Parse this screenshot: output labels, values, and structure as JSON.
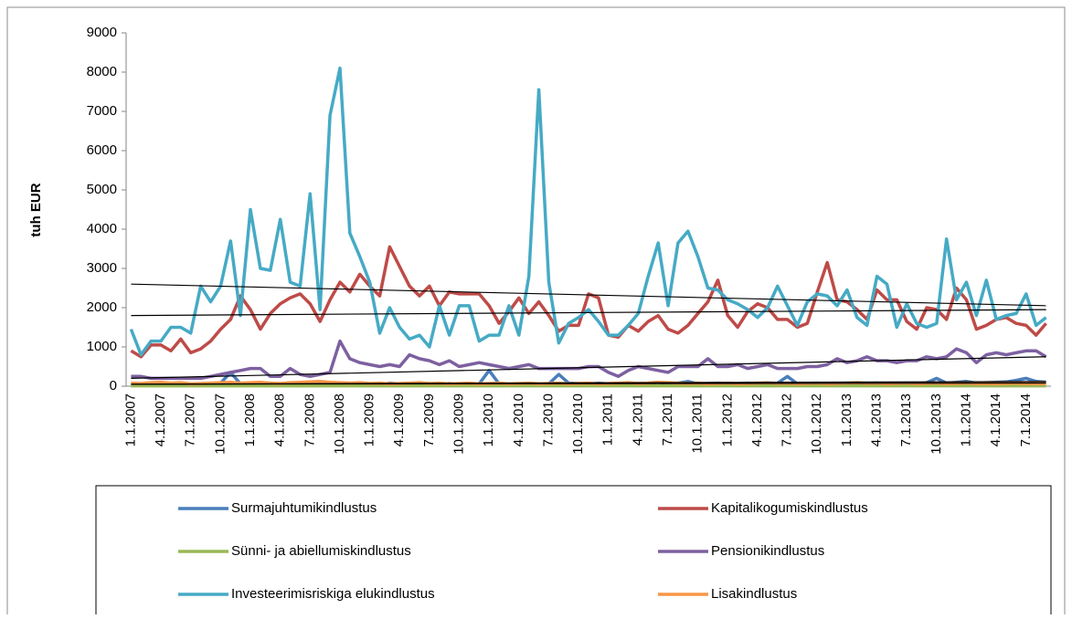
{
  "chart_data": {
    "type": "line",
    "y_label": "tuh EUR",
    "categories": [
      "1.1.2007",
      null,
      null,
      "4.1.2007",
      null,
      null,
      "7.1.2007",
      null,
      null,
      "10.1.2007",
      null,
      null,
      "1.1.2008",
      null,
      null,
      "4.1.2008",
      null,
      null,
      "7.1.2008",
      null,
      null,
      "10.1.2008",
      null,
      null,
      "1.1.2009",
      null,
      null,
      "4.1.2009",
      null,
      null,
      "7.1.2009",
      null,
      null,
      "10.1.2009",
      null,
      null,
      "1.1.2010",
      null,
      null,
      "4.1.2010",
      null,
      null,
      "7.1.2010",
      null,
      null,
      "10.1.2010",
      null,
      null,
      "1.1.2011",
      null,
      null,
      "4.1.2011",
      null,
      null,
      "7.1.2011",
      null,
      null,
      "10.1.2011",
      null,
      null,
      "1.1.2012",
      null,
      null,
      "4.1.2012",
      null,
      null,
      "7.1.2012",
      null,
      null,
      "10.1.2012",
      null,
      null,
      "1.1.2013",
      null,
      null,
      "4.1.2013",
      null,
      null,
      "7.1.2013",
      null,
      null,
      "10.1.2013",
      null,
      null,
      "1.1.2014",
      null,
      null,
      "4.1.2014",
      null,
      null,
      "7.1.2014",
      null,
      null
    ],
    "ylim": [
      0,
      9000
    ],
    "yticks": [
      0,
      1000,
      2000,
      3000,
      4000,
      5000,
      6000,
      7000,
      8000,
      9000
    ],
    "grid": false,
    "legend": "bottom",
    "series": [
      {
        "name": "Surmajuhtumikindlustus",
        "color": "#4a7ebb",
        "values": [
          50,
          40,
          50,
          60,
          50,
          40,
          30,
          50,
          60,
          80,
          350,
          60,
          50,
          40,
          50,
          60,
          50,
          40,
          60,
          50,
          60,
          70,
          50,
          40,
          50,
          30,
          80,
          60,
          40,
          50,
          60,
          50,
          70,
          50,
          40,
          60,
          400,
          60,
          50,
          60,
          70,
          50,
          60,
          300,
          80,
          70,
          60,
          80,
          60,
          50,
          60,
          70,
          80,
          100,
          60,
          80,
          120,
          60,
          70,
          80,
          70,
          60,
          80,
          60,
          70,
          80,
          250,
          60,
          70,
          80,
          60,
          70,
          80,
          60,
          70,
          80,
          60,
          70,
          80,
          60,
          90,
          200,
          80,
          100,
          120,
          80,
          90,
          100,
          110,
          150,
          200,
          120,
          100
        ],
        "trendline": [
          50,
          120
        ]
      },
      {
        "name": "Kapitalikogumiskindlustus",
        "color": "#be4b48",
        "values": [
          900,
          750,
          1050,
          1050,
          900,
          1200,
          850,
          950,
          1150,
          1450,
          1700,
          2300,
          1950,
          1450,
          1850,
          2100,
          2250,
          2350,
          2100,
          1650,
          2200,
          2650,
          2400,
          2850,
          2550,
          2300,
          3550,
          3050,
          2550,
          2300,
          2550,
          2050,
          2400,
          2350,
          2350,
          2350,
          2050,
          1600,
          1900,
          2250,
          1850,
          2150,
          1800,
          1400,
          1550,
          1550,
          2350,
          2250,
          1300,
          1250,
          1550,
          1400,
          1650,
          1800,
          1450,
          1350,
          1550,
          1850,
          2150,
          2700,
          1800,
          1500,
          1900,
          2100,
          2000,
          1700,
          1700,
          1500,
          1600,
          2400,
          3150,
          2200,
          2150,
          1950,
          1700,
          2450,
          2200,
          2200,
          1650,
          1450,
          2000,
          1950,
          1700,
          2500,
          2200,
          1450,
          1550,
          1700,
          1750,
          1600,
          1550,
          1300,
          1600
        ],
        "trendline": [
          1800,
          1950
        ]
      },
      {
        "name": "Sünni- ja abiellumiskindlustus",
        "color": "#98b954",
        "values": [
          10,
          10,
          10,
          10,
          10,
          10,
          10,
          10,
          10,
          10,
          10,
          10,
          10,
          10,
          10,
          10,
          10,
          10,
          10,
          10,
          10,
          10,
          10,
          10,
          10,
          10,
          10,
          10,
          10,
          10,
          10,
          10,
          10,
          10,
          10,
          10,
          10,
          10,
          10,
          10,
          10,
          10,
          10,
          10,
          10,
          10,
          10,
          10,
          10,
          10,
          10,
          10,
          10,
          10,
          10,
          10,
          10,
          10,
          10,
          10,
          10,
          10,
          10,
          10,
          10,
          10,
          10,
          10,
          10,
          10,
          10,
          10,
          10,
          10,
          10,
          10,
          10,
          10,
          10,
          10,
          10,
          10,
          10,
          10,
          10,
          10,
          10,
          10,
          10,
          10,
          10,
          10,
          10
        ]
      },
      {
        "name": "Pensionikindlustus",
        "color": "#7d60a0",
        "values": [
          250,
          250,
          200,
          200,
          200,
          200,
          200,
          200,
          250,
          300,
          350,
          400,
          450,
          450,
          250,
          250,
          450,
          300,
          250,
          300,
          350,
          1150,
          700,
          600,
          550,
          500,
          550,
          500,
          800,
          700,
          650,
          550,
          650,
          500,
          550,
          600,
          550,
          500,
          450,
          500,
          550,
          450,
          450,
          450,
          450,
          450,
          500,
          500,
          350,
          250,
          400,
          500,
          450,
          400,
          350,
          500,
          500,
          500,
          700,
          500,
          500,
          550,
          450,
          500,
          550,
          450,
          450,
          450,
          500,
          500,
          550,
          700,
          600,
          650,
          750,
          650,
          650,
          600,
          650,
          650,
          750,
          700,
          750,
          950,
          850,
          600,
          800,
          850,
          800,
          850,
          900,
          900,
          750
        ],
        "trendline": [
          200,
          750
        ]
      },
      {
        "name": "Investeerimisriskiga elukindlustus",
        "color": "#46aac5",
        "values": [
          1450,
          800,
          1150,
          1150,
          1500,
          1500,
          1350,
          2550,
          2150,
          2550,
          3700,
          1800,
          4500,
          3000,
          2950,
          4250,
          2650,
          2550,
          4900,
          1950,
          6900,
          8100,
          3900,
          3300,
          2650,
          1350,
          2000,
          1500,
          1200,
          1300,
          1000,
          2050,
          1300,
          2050,
          2050,
          1150,
          1300,
          1300,
          2050,
          1300,
          2800,
          7550,
          2650,
          1100,
          1600,
          1750,
          1950,
          1650,
          1300,
          1300,
          1550,
          1850,
          2800,
          3650,
          2050,
          3650,
          3950,
          3300,
          2500,
          2450,
          2200,
          2100,
          1950,
          1750,
          2000,
          2550,
          2050,
          1550,
          2150,
          2350,
          2300,
          2050,
          2450,
          1750,
          1550,
          2800,
          2600,
          1500,
          2100,
          1600,
          1500,
          1600,
          3750,
          2200,
          2650,
          1800,
          2700,
          1700,
          1800,
          1850,
          2350,
          1550,
          1750
        ],
        "trendline": [
          2600,
          2050
        ]
      },
      {
        "name": "Lisakindlustus",
        "color": "#f79646",
        "values": [
          80,
          70,
          90,
          100,
          80,
          90,
          60,
          70,
          80,
          90,
          100,
          80,
          90,
          100,
          80,
          70,
          90,
          100,
          110,
          120,
          100,
          90,
          80,
          90,
          70,
          80,
          60,
          70,
          80,
          90,
          70,
          80,
          60,
          70,
          80,
          60,
          70,
          80,
          60,
          70,
          80,
          60,
          70,
          80,
          60,
          70,
          80,
          60,
          70,
          80,
          90,
          70,
          80,
          100,
          90,
          80,
          70,
          80,
          60,
          70,
          80,
          60,
          70,
          80,
          90,
          70,
          80,
          60,
          70,
          80,
          60,
          70,
          80,
          90,
          70,
          80,
          60,
          70,
          80,
          60,
          70,
          80,
          60,
          70,
          80,
          60,
          70,
          60,
          70,
          80,
          60,
          70,
          60
        ],
        "trendline": [
          50,
          80
        ]
      }
    ]
  }
}
